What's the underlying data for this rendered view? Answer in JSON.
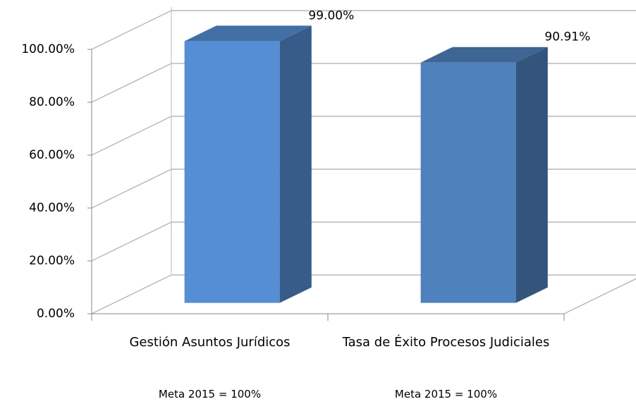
{
  "chart_data": {
    "type": "bar3d",
    "categories": [
      "Gestión Asuntos Jurídicos",
      "Tasa de Éxito Procesos Judiciales"
    ],
    "values": [
      99,
      90.91
    ],
    "value_labels": [
      "99.00%",
      "90.91%"
    ],
    "colors": [
      "#558ed5",
      "#4f81bd"
    ],
    "ylim": [
      0,
      100
    ],
    "yticks": [
      {
        "value": 0,
        "label": "0.00%"
      },
      {
        "value": 20,
        "label": "20.00%"
      },
      {
        "value": 40,
        "label": "40.00%"
      },
      {
        "value": 60,
        "label": "60.00%"
      },
      {
        "value": 80,
        "label": "80.00%"
      },
      {
        "value": 100,
        "label": "100.00%"
      }
    ],
    "annotations": [
      "Meta 2015 = 100%",
      "Meta 2015 = 100%"
    ],
    "grid": true
  }
}
